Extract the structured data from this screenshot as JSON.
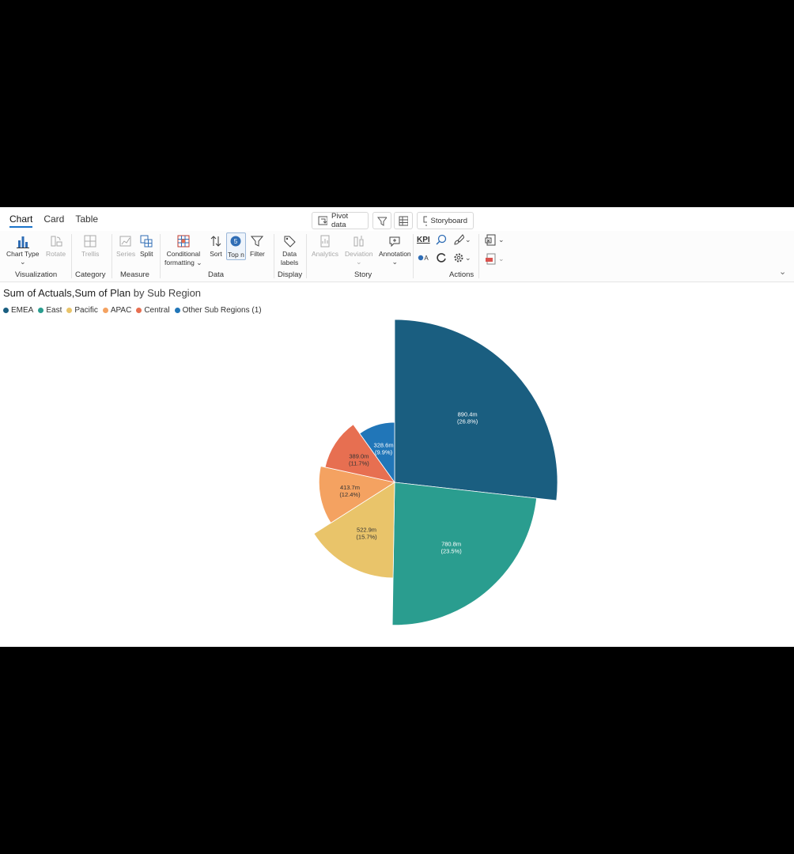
{
  "tabs": [
    {
      "label": "Chart",
      "active": true
    },
    {
      "label": "Card",
      "active": false
    },
    {
      "label": "Table",
      "active": false
    }
  ],
  "topbar": {
    "pivot_label": "Pivot data",
    "storyboard_label": "Storyboard"
  },
  "ribbon": {
    "chart_type": "Chart Type",
    "rotate": "Rotate",
    "trellis": "Trellis",
    "series": "Series",
    "split": "Split",
    "cond_fmt_1": "Conditional",
    "cond_fmt_2": "formatting",
    "sort": "Sort",
    "topn": "Top n",
    "topn_badge": "5",
    "filter": "Filter",
    "data_labels_1": "Data",
    "data_labels_2": "labels",
    "analytics": "Analytics",
    "deviation": "Deviation",
    "annotation": "Annotation",
    "kpi": "KPI",
    "groups": {
      "visualization": "Visualization",
      "category": "Category",
      "measure": "Measure",
      "data": "Data",
      "display": "Display",
      "story": "Story",
      "actions": "Actions"
    }
  },
  "chart_title": {
    "main": "Sum of Actuals,Sum of Plan",
    "sub": " by Sub Region"
  },
  "legend": [
    {
      "label": "EMEA",
      "color": "#1a5e80"
    },
    {
      "label": "East",
      "color": "#2a9d8f"
    },
    {
      "label": "Pacific",
      "color": "#e9c46a"
    },
    {
      "label": "APAC",
      "color": "#f4a261"
    },
    {
      "label": "Central",
      "color": "#e76f51"
    },
    {
      "label": "Other Sub Regions (1)",
      "color": "#2176b8"
    }
  ],
  "chart_data": {
    "type": "pie",
    "variant": "polar-area (radius proportional to value)",
    "title": "Sum of Actuals,Sum of Plan by Sub Region",
    "categories": [
      "EMEA",
      "East",
      "Pacific",
      "APAC",
      "Central",
      "Other Sub Regions (1)"
    ],
    "values": [
      890.4,
      780.8,
      522.9,
      413.7,
      389.0,
      328.6
    ],
    "unit": "m",
    "value_labels": [
      "890.4m",
      "780.8m",
      "522.9m",
      "413.7m",
      "389.0m",
      "328.6m"
    ],
    "percent_labels": [
      "(26.8%)",
      "(23.5%)",
      "(15.7%)",
      "(12.4%)",
      "(11.7%)",
      "(9.9%)"
    ],
    "colors": [
      "#1a5e80",
      "#2a9d8f",
      "#e9c46a",
      "#f4a261",
      "#e76f51",
      "#2176b8"
    ],
    "label_colors": [
      "#ffffff",
      "#ffffff",
      "#333333",
      "#333333",
      "#333333",
      "#ffffff"
    ],
    "legend_position": "top-left"
  }
}
